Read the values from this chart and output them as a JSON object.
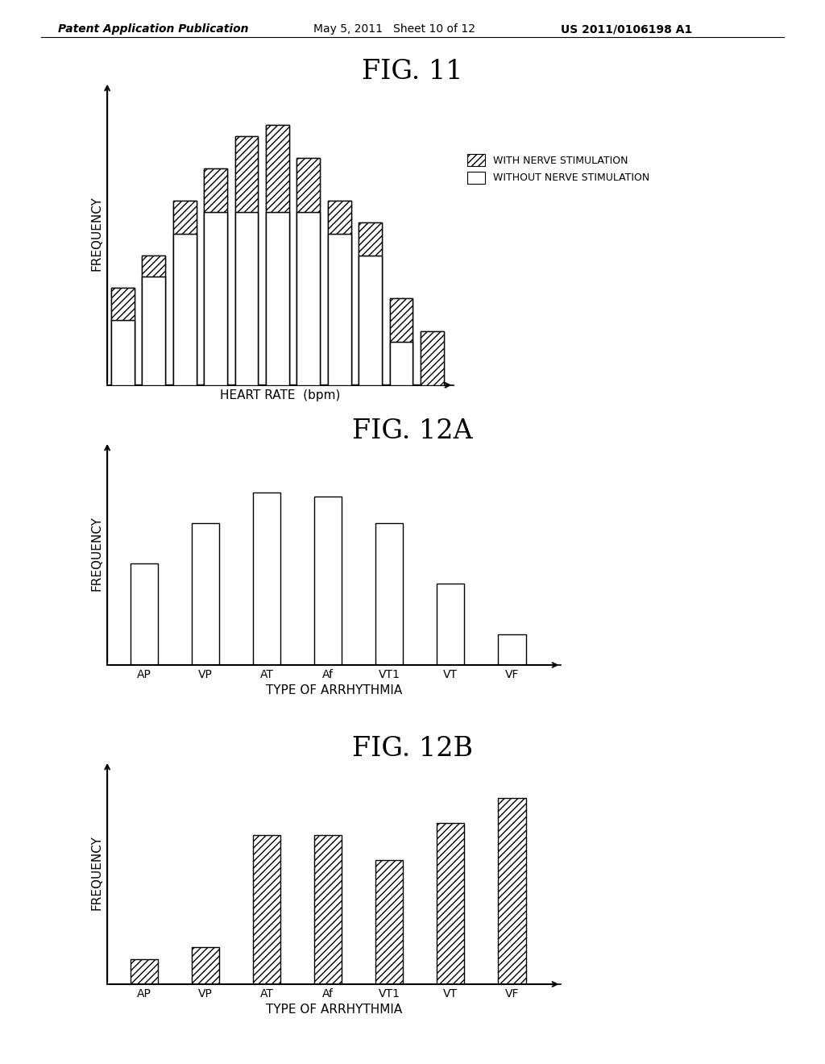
{
  "header_left": "Patent Application Publication",
  "header_mid": "May 5, 2011   Sheet 10 of 12",
  "header_right": "US 2011/0106198 A1",
  "fig11": {
    "title": "FIG. 11",
    "xlabel": "HEART RATE  (bpm)",
    "ylabel": "FREQUENCY",
    "legend_with": "WITH NERVE STIMULATION",
    "legend_without": "WITHOUT NERVE STIMULATION",
    "without_values": [
      3.0,
      5.0,
      7.0,
      8.0,
      8.0,
      8.0,
      8.0,
      7.0,
      6.0,
      2.0,
      0.0
    ],
    "with_values": [
      4.5,
      6.0,
      8.5,
      10.0,
      11.5,
      12.0,
      10.5,
      8.5,
      7.5,
      4.0,
      2.5
    ]
  },
  "fig12a": {
    "title": "FIG. 12A",
    "xlabel": "TYPE OF ARRHYTHMIA",
    "ylabel": "FREQUENCY",
    "categories": [
      "AP",
      "VP",
      "AT",
      "Af",
      "VT1",
      "VT",
      "VF"
    ],
    "values": [
      5.0,
      7.0,
      8.5,
      8.3,
      7.0,
      4.0,
      1.5
    ]
  },
  "fig12b": {
    "title": "FIG. 12B",
    "xlabel": "TYPE OF ARRHYTHMIA",
    "ylabel": "FREQUENCY",
    "categories": [
      "AP",
      "VP",
      "AT",
      "Af",
      "VT1",
      "VT",
      "VF"
    ],
    "values": [
      1.0,
      1.5,
      6.0,
      6.0,
      5.0,
      6.5,
      7.5
    ]
  },
  "background_color": "#ffffff",
  "hatch_pattern": "////",
  "fig_title_fontsize": 24,
  "axis_label_fontsize": 11,
  "header_fontsize": 10,
  "legend_fontsize": 9
}
